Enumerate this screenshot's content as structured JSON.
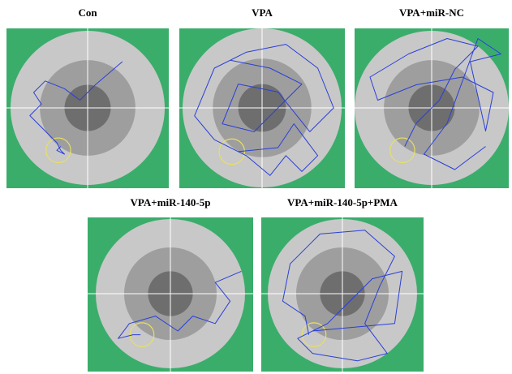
{
  "panels": [
    {
      "label": "Con"
    },
    {
      "label": "VPA"
    },
    {
      "label": "VPA+miR-NC"
    },
    {
      "label": "VPA+miR-140-5p"
    },
    {
      "label": "VPA+miR-140-5p+PMA"
    }
  ]
}
